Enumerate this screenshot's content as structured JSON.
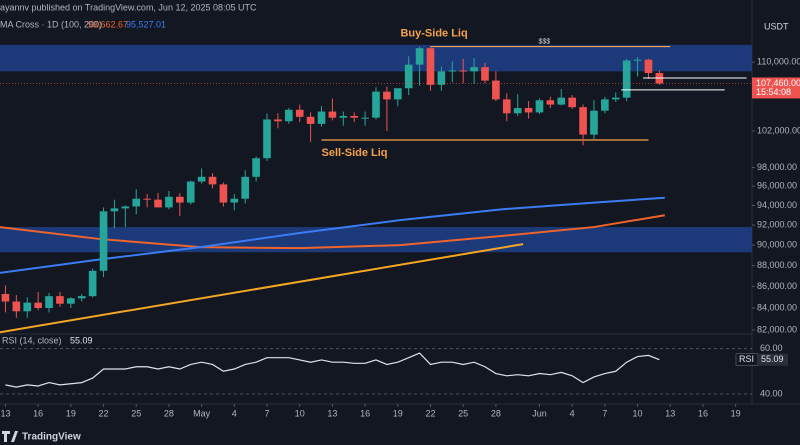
{
  "chart_data": {
    "type": "candlestick",
    "header": "ayannv published on TradingView.com, Jun 12, 2025 08:05 UTC",
    "indicator": "MA Cross · 1D (100, 200)",
    "indicator_values": [
      "93,662.67",
      "95,527.01"
    ],
    "currency": "USDT",
    "brand": "TradingView",
    "log_scale": true,
    "up_color": "#26a69a",
    "down_color": "#ef5350",
    "x": [
      0,
      1,
      2,
      3,
      4,
      5,
      6,
      7,
      8,
      9,
      10,
      11,
      12,
      13,
      14,
      15,
      16,
      17,
      18,
      19,
      20,
      21,
      22,
      23,
      24,
      25,
      26,
      27,
      28,
      29,
      30,
      31,
      32,
      33,
      34,
      35,
      36,
      37,
      38,
      39,
      40,
      41,
      42,
      43,
      44,
      45,
      46,
      47,
      48,
      49,
      50,
      51,
      52,
      53,
      54,
      55,
      56,
      57,
      58,
      59,
      60
    ],
    "open": [
      85300,
      84600,
      83700,
      84500,
      84000,
      85100,
      84400,
      84900,
      85100,
      87500,
      93400,
      93700,
      93900,
      94700,
      94600,
      93800,
      94900,
      94300,
      96500,
      97000,
      96200,
      94300,
      94700,
      97000,
      99000,
      103300,
      103100,
      104400,
      103600,
      102800,
      104200,
      103500,
      103700,
      103500,
      103500,
      106500,
      105600,
      106900,
      109700,
      111700,
      107300,
      108900,
      109000,
      108900,
      109400,
      107800,
      105600,
      104000,
      104600,
      104100,
      105500,
      105000,
      105800,
      104700,
      101600,
      104300,
      105600,
      105800,
      110200,
      110300,
      108700
    ],
    "high": [
      86100,
      85200,
      85000,
      85500,
      85400,
      85500,
      85000,
      85300,
      87700,
      93800,
      94600,
      94000,
      95700,
      95200,
      95300,
      95500,
      95300,
      96600,
      97900,
      97400,
      96400,
      95200,
      97700,
      99200,
      104000,
      104000,
      104600,
      105000,
      104100,
      104800,
      105700,
      104200,
      104100,
      104200,
      107000,
      107100,
      106800,
      110700,
      111900,
      111900,
      109500,
      110100,
      110400,
      110500,
      109900,
      108900,
      106300,
      106200,
      105400,
      105700,
      105900,
      106800,
      106100,
      105000,
      105500,
      105900,
      106400,
      110400,
      110600,
      110400,
      109000
    ],
    "low": [
      83600,
      83100,
      83100,
      83800,
      83600,
      84100,
      84000,
      84600,
      85000,
      86900,
      91700,
      91800,
      93100,
      93800,
      93800,
      93600,
      92900,
      94100,
      96300,
      95800,
      93900,
      93500,
      94200,
      96500,
      98700,
      102300,
      102800,
      103000,
      100800,
      102500,
      103200,
      102600,
      103000,
      102600,
      103300,
      102000,
      104800,
      106100,
      107200,
      106600,
      106600,
      107600,
      107500,
      107400,
      107500,
      105400,
      103100,
      103700,
      103400,
      103900,
      104600,
      104900,
      104500,
      100400,
      101100,
      104000,
      105300,
      105400,
      108300,
      108000,
      107300
    ],
    "close": [
      84600,
      83700,
      84500,
      84000,
      85100,
      84400,
      84900,
      85100,
      87500,
      93400,
      93700,
      93900,
      94700,
      94600,
      93800,
      94900,
      94300,
      96500,
      97000,
      96200,
      94300,
      94700,
      97000,
      99000,
      103300,
      103100,
      104400,
      103600,
      102800,
      104200,
      103500,
      103700,
      103500,
      103500,
      106500,
      105600,
      106900,
      109700,
      111700,
      107300,
      108900,
      109000,
      108900,
      109400,
      107800,
      105600,
      104000,
      104600,
      104100,
      105500,
      105000,
      105800,
      104700,
      101600,
      104300,
      105600,
      105800,
      110200,
      110300,
      108700,
      107460
    ],
    "last_price": {
      "value": 107460,
      "label": "107,460.00"
    },
    "countdown": "15:54:08",
    "xlim": [
      -0.5,
      68.5
    ],
    "xticks": [
      {
        "value": 0,
        "label": "13"
      },
      {
        "value": 3,
        "label": "16"
      },
      {
        "value": 6,
        "label": "19"
      },
      {
        "value": 9,
        "label": "22"
      },
      {
        "value": 12,
        "label": "25"
      },
      {
        "value": 15,
        "label": "28"
      },
      {
        "value": 18,
        "label": "May"
      },
      {
        "value": 21,
        "label": "4"
      },
      {
        "value": 24,
        "label": "7"
      },
      {
        "value": 27,
        "label": "10"
      },
      {
        "value": 30,
        "label": "13"
      },
      {
        "value": 33,
        "label": "16"
      },
      {
        "value": 36,
        "label": "19"
      },
      {
        "value": 39,
        "label": "22"
      },
      {
        "value": 42,
        "label": "25"
      },
      {
        "value": 45,
        "label": "28"
      },
      {
        "value": 49,
        "label": "Jun"
      },
      {
        "value": 52,
        "label": "4"
      },
      {
        "value": 55,
        "label": "7"
      },
      {
        "value": 58,
        "label": "10"
      },
      {
        "value": 61,
        "label": "13"
      },
      {
        "value": 64,
        "label": "16"
      },
      {
        "value": 67,
        "label": "19"
      }
    ],
    "ylim": [
      81730,
      115460
    ],
    "yticks": [
      {
        "value": 110000,
        "label": "110,000.00"
      },
      {
        "value": 102000,
        "label": "102,000.00"
      },
      {
        "value": 98000,
        "label": "98,000.00"
      },
      {
        "value": 96000,
        "label": "96,000.00"
      },
      {
        "value": 94000,
        "label": "94,000.00"
      },
      {
        "value": 92000,
        "label": "92,000.00"
      },
      {
        "value": 90000,
        "label": "90,000.00"
      },
      {
        "value": 88000,
        "label": "88,000.00"
      },
      {
        "value": 86000,
        "label": "86,000.00"
      },
      {
        "value": 84000,
        "label": "84,000.00"
      },
      {
        "value": 82000,
        "label": "82,000.00"
      }
    ],
    "zones": [
      {
        "from": 108900,
        "to": 112100
      },
      {
        "from": 89300,
        "to": 91800
      }
    ],
    "zone_color": "#1e3f8a",
    "lines": [
      {
        "label": "Buy-Side Liq",
        "price": 111900,
        "from": 39,
        "to": 61,
        "color": "#f7a24b"
      },
      {
        "label": "Sell-Side Liq",
        "price": 101000,
        "from": 29,
        "to": 59,
        "color": "#f7a24b"
      }
    ],
    "marker_text": "$$$",
    "levels": [
      {
        "price": 108100,
        "from": 58.5,
        "to": 68,
        "color": "#ffffff"
      },
      {
        "price": 106700,
        "from": 56.5,
        "to": 66,
        "color": "#ffffff"
      }
    ],
    "trendline": {
      "x": [
        -0.5,
        47.5
      ],
      "values": [
        81800,
        90100
      ],
      "color": "#f5a623"
    },
    "ma_series": [
      {
        "x": [
          -0.5,
          8.7,
          17.9,
          27,
          36.2,
          45.5,
          54,
          60.5
        ],
        "values": [
          91800,
          90600,
          89800,
          89700,
          90000,
          90900,
          91800,
          93000
        ],
        "color": "#f0642d"
      },
      {
        "x": [
          -0.5,
          8.7,
          17.9,
          27,
          36.2,
          45.5,
          54,
          60.5
        ],
        "values": [
          87300,
          88600,
          89800,
          91200,
          92500,
          93600,
          94300,
          94800
        ],
        "color": "#3b7cf4"
      }
    ],
    "rsi": {
      "title": "RSI (14, close)",
      "name": "RSI",
      "color": "#e0e3eb",
      "last_label": "55.09",
      "ylim": [
        36,
        66
      ],
      "yticks": [
        {
          "value": 60,
          "label": "60.00"
        },
        {
          "value": 40,
          "label": "40.00"
        }
      ],
      "values": [
        44,
        43,
        44,
        43.5,
        45,
        44,
        44.5,
        45,
        47,
        51,
        51,
        51,
        52,
        52,
        51,
        52,
        51,
        53,
        54,
        53,
        50,
        51,
        53,
        54,
        56,
        56,
        56,
        55,
        54,
        55,
        54,
        54,
        53.5,
        53.5,
        55,
        53,
        54,
        56,
        58,
        53,
        54,
        54,
        53,
        54,
        52,
        49,
        48,
        48.5,
        48,
        49,
        48.5,
        49.5,
        48,
        45,
        47.5,
        49,
        50,
        54,
        56.5,
        57,
        55.09
      ]
    }
  }
}
